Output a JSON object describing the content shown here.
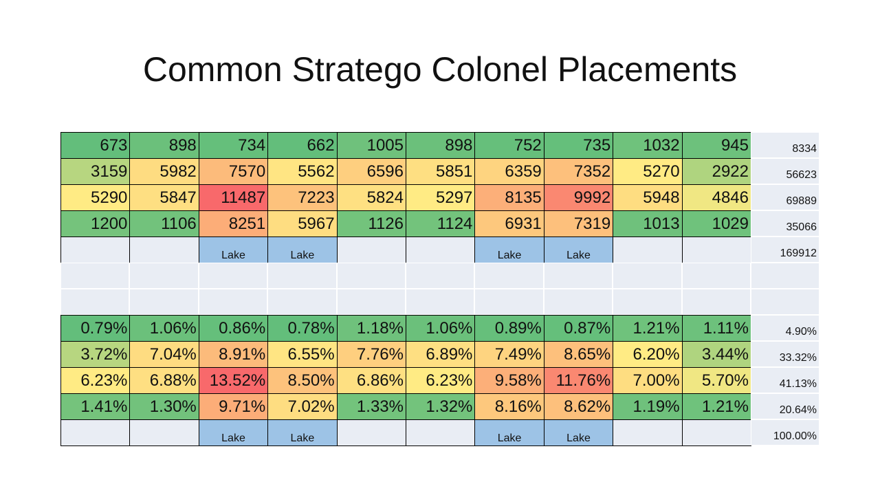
{
  "title": "Common Stratego Colonel Placements",
  "counts": {
    "rows": [
      [
        673,
        898,
        734,
        662,
        1005,
        898,
        752,
        735,
        1032,
        945
      ],
      [
        3159,
        5982,
        7570,
        5562,
        6596,
        5851,
        6359,
        7352,
        5270,
        2922
      ],
      [
        5290,
        5847,
        11487,
        7223,
        5824,
        5297,
        8135,
        9992,
        5948,
        4846
      ],
      [
        1200,
        1106,
        8251,
        5967,
        1126,
        1124,
        6931,
        7319,
        1013,
        1029
      ],
      [
        null,
        null,
        "Lake",
        "Lake",
        null,
        null,
        "Lake",
        "Lake",
        null,
        null
      ]
    ],
    "totals": [
      8334,
      56623,
      69889,
      35066,
      169912
    ]
  },
  "percentages": {
    "rows": [
      [
        "0.79%",
        "1.06%",
        "0.86%",
        "0.78%",
        "1.18%",
        "1.06%",
        "0.89%",
        "0.87%",
        "1.21%",
        "1.11%"
      ],
      [
        "3.72%",
        "7.04%",
        "8.91%",
        "6.55%",
        "7.76%",
        "6.89%",
        "7.49%",
        "8.65%",
        "6.20%",
        "3.44%"
      ],
      [
        "6.23%",
        "6.88%",
        "13.52%",
        "8.50%",
        "6.86%",
        "6.23%",
        "9.58%",
        "11.76%",
        "7.00%",
        "5.70%"
      ],
      [
        "1.41%",
        "1.30%",
        "9.71%",
        "7.02%",
        "1.33%",
        "1.32%",
        "8.16%",
        "8.62%",
        "1.19%",
        "1.21%"
      ],
      [
        null,
        null,
        "Lake",
        "Lake",
        null,
        null,
        "Lake",
        "Lake",
        null,
        null
      ]
    ],
    "totals": [
      "4.90%",
      "33.32%",
      "41.13%",
      "20.64%",
      "100.00%"
    ]
  },
  "heatmap_colors": [
    "#63be7b",
    "#ffeb84",
    "#f8696b"
  ],
  "lake_color": "#9dc3e6",
  "empty_color": "#e9edf4"
}
